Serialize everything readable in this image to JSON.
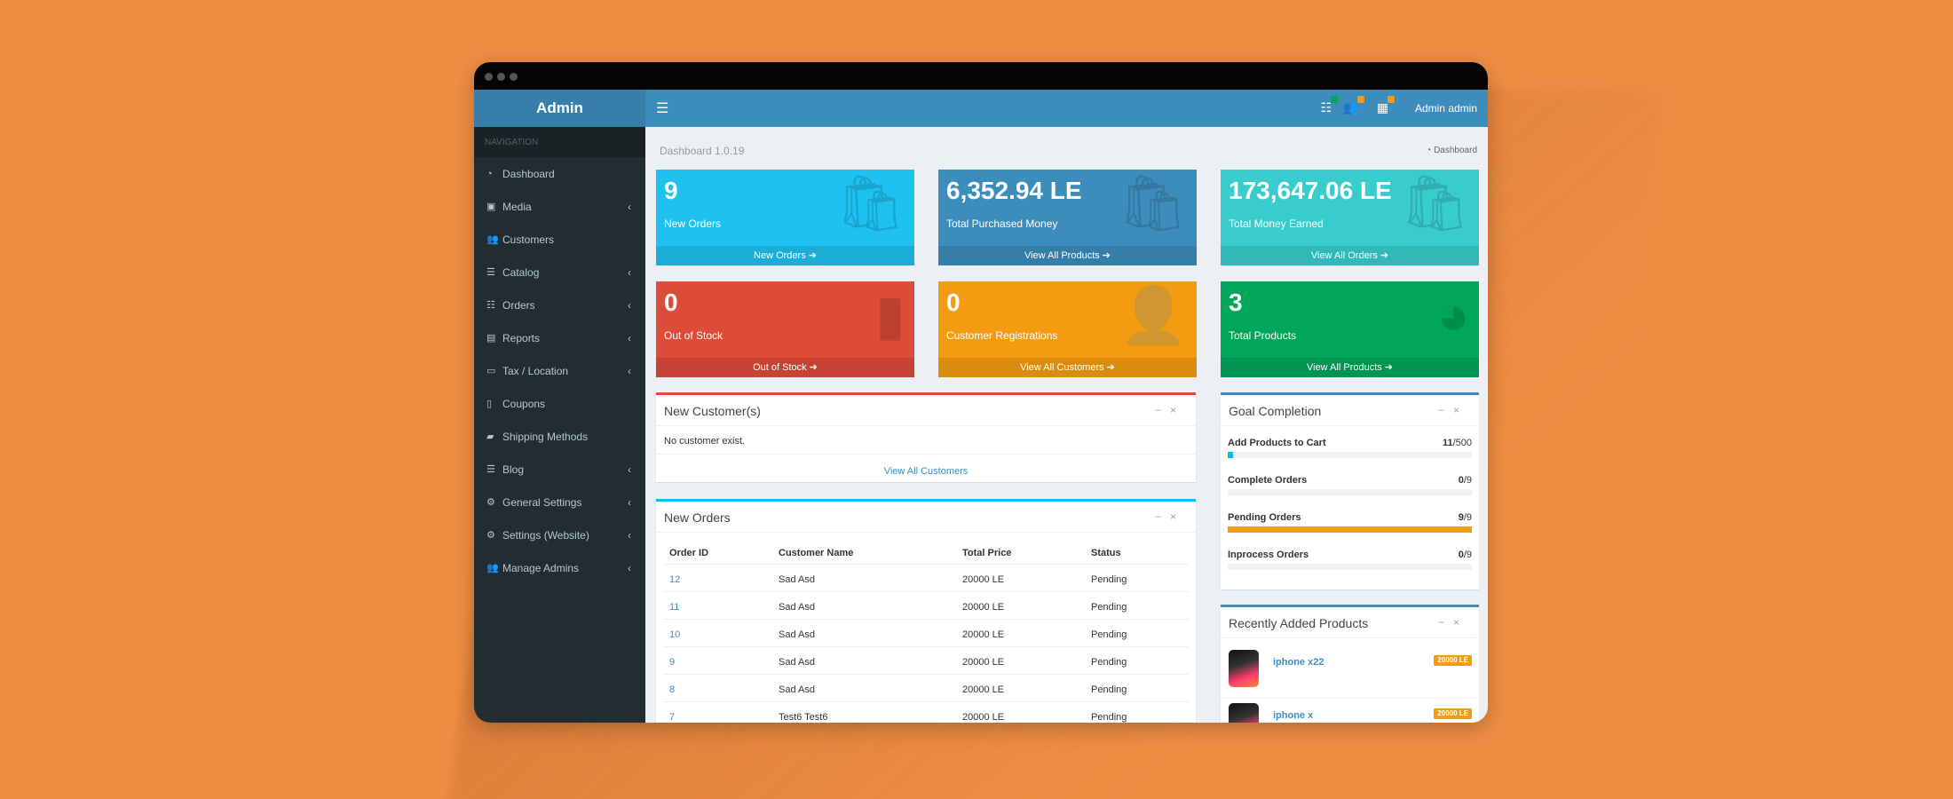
{
  "brand": {
    "title": "Admin"
  },
  "topbar": {
    "user_label": "Admin admin",
    "icons": [
      "list-icon",
      "users-icon",
      "grid-icon"
    ],
    "badge_colors": [
      "#00a65a",
      "#f39c12",
      "#f39c12"
    ]
  },
  "sidebar": {
    "header": "NAVIGATION",
    "items": [
      {
        "label": "Dashboard",
        "icon": "dashboard-icon",
        "has_children": false
      },
      {
        "label": "Media",
        "icon": "image-icon",
        "has_children": true
      },
      {
        "label": "Customers",
        "icon": "users-icon",
        "has_children": false
      },
      {
        "label": "Catalog",
        "icon": "database-icon",
        "has_children": true
      },
      {
        "label": "Orders",
        "icon": "list-icon",
        "has_children": true
      },
      {
        "label": "Reports",
        "icon": "file-icon",
        "has_children": true
      },
      {
        "label": "Tax / Location",
        "icon": "money-icon",
        "has_children": true
      },
      {
        "label": "Coupons",
        "icon": "tablet-icon",
        "has_children": false
      },
      {
        "label": "Shipping Methods",
        "icon": "truck-icon",
        "has_children": false
      },
      {
        "label": "Blog",
        "icon": "database-icon",
        "has_children": true
      },
      {
        "label": "General Settings",
        "icon": "gears-icon",
        "has_children": true
      },
      {
        "label": "Settings (Website)",
        "icon": "gears-icon",
        "has_children": true
      },
      {
        "label": "Manage Admins",
        "icon": "users-icon",
        "has_children": true
      }
    ]
  },
  "page": {
    "title": "Dashboard 1.0.19",
    "breadcrumb": "Dashboard"
  },
  "stat_boxes": [
    {
      "value": "9",
      "label": "New Orders",
      "footer": "New Orders ➔",
      "color": "#1ec1ef",
      "icon": "bag-icon"
    },
    {
      "value": "6,352.94 LE",
      "label": "Total Purchased Money",
      "footer": "View All Products ➔",
      "color": "#3c8dbc",
      "icon": "bag-icon"
    },
    {
      "value": "173,647.06 LE",
      "label": "Total Money Earned",
      "footer": "View All Orders ➔",
      "color": "#39cccc",
      "icon": "bag-icon"
    },
    {
      "value": "0",
      "label": "Out of Stock",
      "footer": "Out of Stock ➔",
      "color": "#dd4b39",
      "icon": "bar-chart-icon"
    },
    {
      "value": "0",
      "label": "Customer Registrations",
      "footer": "View All Customers ➔",
      "color": "#f39c12",
      "icon": "user-plus-icon"
    },
    {
      "value": "3",
      "label": "Total Products",
      "footer": "View All Products ➔",
      "color": "#00a65a",
      "icon": "pie-chart-icon"
    }
  ],
  "new_customers": {
    "title": "New Customer(s)",
    "empty_text": "No customer exist.",
    "link": "View All Customers"
  },
  "new_orders": {
    "title": "New Orders",
    "columns": [
      "Order ID",
      "Customer Name",
      "Total Price",
      "Status"
    ],
    "rows": [
      {
        "id": "12",
        "customer": "Sad Asd",
        "price": "20000 LE",
        "status": "Pending"
      },
      {
        "id": "11",
        "customer": "Sad Asd",
        "price": "20000 LE",
        "status": "Pending"
      },
      {
        "id": "10",
        "customer": "Sad Asd",
        "price": "20000 LE",
        "status": "Pending"
      },
      {
        "id": "9",
        "customer": "Sad Asd",
        "price": "20000 LE",
        "status": "Pending"
      },
      {
        "id": "8",
        "customer": "Sad Asd",
        "price": "20000 LE",
        "status": "Pending"
      },
      {
        "id": "7",
        "customer": "Test6 Test6",
        "price": "20000 LE",
        "status": "Pending"
      }
    ]
  },
  "goal_completion": {
    "title": "Goal Completion",
    "goals": [
      {
        "name": "Add Products to Cart",
        "done": "11",
        "total": "/500",
        "fraction": 0.022,
        "color": "#00c0ef"
      },
      {
        "name": "Complete Orders",
        "done": "0",
        "total": "/9",
        "fraction": 0,
        "color": "#00a65a"
      },
      {
        "name": "Pending Orders",
        "done": "9",
        "total": "/9",
        "fraction": 1,
        "color": "#f39c12"
      },
      {
        "name": "Inprocess Orders",
        "done": "0",
        "total": "/9",
        "fraction": 0,
        "color": "#3c8dbc"
      }
    ]
  },
  "recent_products": {
    "title": "Recently Added Products",
    "items": [
      {
        "name": "iphone x22",
        "price": "20000 LE"
      },
      {
        "name": "iphone x",
        "price": "20000 LE"
      }
    ]
  },
  "panel_tools": {
    "collapse": "−",
    "close": "×"
  }
}
